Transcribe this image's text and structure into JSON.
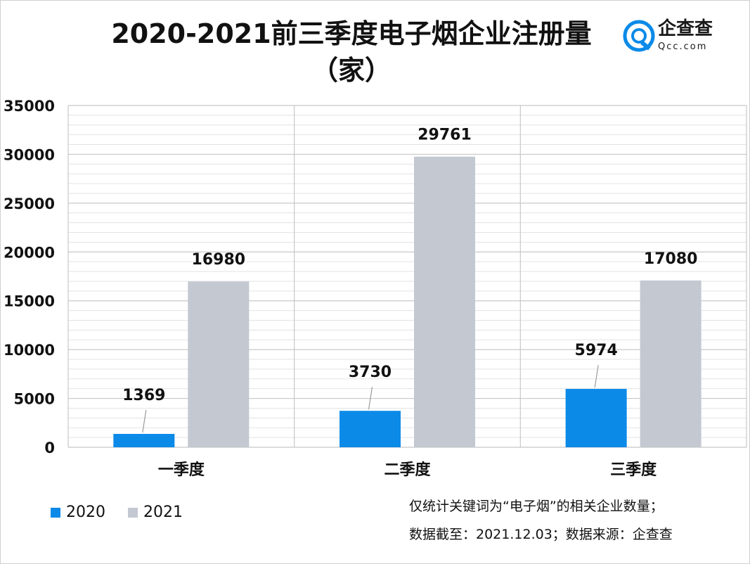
{
  "chart_data": {
    "type": "bar",
    "title": "2020-2021前三季度电子烟企业注册量（家）",
    "title_line1": "2020-2021前三季度电子烟企业注册量",
    "title_line2": "（家）",
    "categories": [
      "一季度",
      "二季度",
      "三季度"
    ],
    "series": [
      {
        "name": "2020",
        "values": [
          1369,
          3730,
          5974
        ],
        "color": "#0b8ae8"
      },
      {
        "name": "2021",
        "values": [
          16980,
          29761,
          17080
        ],
        "color": "#c3c8d1"
      }
    ],
    "ylim": [
      0,
      35000
    ],
    "yticks": [
      0,
      5000,
      10000,
      15000,
      20000,
      25000,
      30000,
      35000
    ],
    "xlabel": "",
    "ylabel": "",
    "grid": true,
    "legend_position": "bottom-left"
  },
  "logo": {
    "name": "企查查",
    "domain": "Qcc.com",
    "icon": "qcc-logo-icon",
    "color": "#0b8ae8"
  },
  "notes": {
    "line1": "仅统计关键词为“电子烟”的相关企业数量；",
    "line2": "数据截至：2021.12.03；数据来源：企查查"
  }
}
